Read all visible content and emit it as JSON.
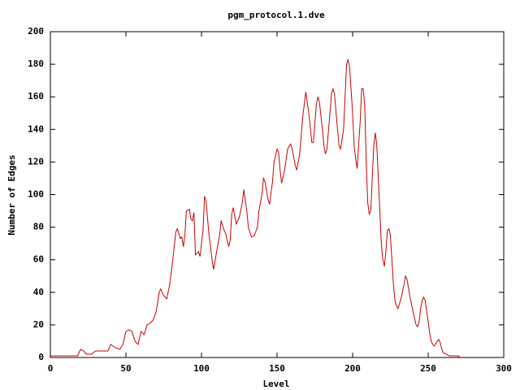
{
  "chart_data": {
    "type": "line",
    "title": "pgm_protocol.1.dve",
    "x_label": "Level",
    "y_label": "Number of Edges",
    "xlim": [
      0,
      300
    ],
    "xticks": [
      0,
      50,
      100,
      150,
      200,
      250,
      300
    ],
    "ylim": [
      0,
      200
    ],
    "yticks": [
      0,
      20,
      40,
      60,
      80,
      100,
      120,
      140,
      160,
      180,
      200
    ],
    "series": [
      {
        "color": "#cc0000",
        "x": [
          0,
          18,
          20,
          22,
          24,
          27,
          30,
          35,
          38,
          40,
          43,
          46,
          48,
          50,
          52,
          54,
          56,
          58,
          60,
          62,
          64,
          66,
          68,
          70,
          72,
          73,
          75,
          77,
          79,
          81,
          83,
          84,
          86,
          87,
          88,
          89,
          90,
          92,
          93,
          94,
          95,
          96,
          98,
          99,
          101,
          102,
          103,
          105,
          107,
          108,
          110,
          112,
          113,
          115,
          116,
          118,
          119,
          120,
          121,
          123,
          125,
          127,
          128,
          130,
          131,
          133,
          135,
          137,
          138,
          140,
          141,
          142,
          144,
          145,
          147,
          148,
          150,
          151,
          152,
          153,
          155,
          157,
          159,
          160,
          162,
          163,
          165,
          167,
          169,
          171,
          173,
          174,
          176,
          177,
          178,
          180,
          181,
          182,
          183,
          185,
          186,
          187,
          188,
          190,
          191,
          192,
          194,
          195,
          196,
          197,
          198,
          200,
          201,
          202,
          203,
          205,
          206,
          207,
          208,
          209,
          210,
          211,
          212,
          213,
          214,
          215,
          216,
          217,
          218,
          219,
          220,
          221,
          222,
          223,
          224,
          225,
          226,
          227,
          228,
          229,
          230,
          232,
          234,
          235,
          236,
          238,
          240,
          241,
          242,
          243,
          244,
          245,
          246,
          247,
          248,
          250,
          251,
          252,
          253,
          254,
          256,
          257,
          258,
          259,
          260,
          262,
          264,
          270,
          271
        ],
        "values": [
          1,
          1,
          5,
          4,
          2,
          2,
          4,
          4,
          4,
          8,
          6,
          5,
          8,
          16,
          17,
          16,
          10,
          8,
          16,
          14,
          20,
          21,
          23,
          28,
          40,
          42,
          38,
          36,
          45,
          60,
          77,
          79,
          73,
          74,
          68,
          75,
          90,
          91,
          85,
          84,
          89,
          63,
          65,
          62,
          78,
          99,
          96,
          75,
          60,
          54,
          65,
          75,
          84,
          78,
          76,
          68,
          72,
          88,
          92,
          82,
          86,
          95,
          103,
          90,
          80,
          74,
          75,
          80,
          90,
          100,
          110,
          108,
          97,
          94,
          108,
          120,
          128,
          126,
          115,
          107,
          115,
          128,
          131,
          128,
          118,
          115,
          125,
          148,
          163,
          150,
          132,
          132,
          155,
          160,
          157,
          140,
          130,
          125,
          128,
          150,
          162,
          165,
          162,
          140,
          130,
          128,
          140,
          160,
          180,
          183,
          178,
          150,
          130,
          122,
          116,
          145,
          165,
          165,
          155,
          120,
          95,
          88,
          90,
          110,
          130,
          138,
          130,
          110,
          90,
          70,
          60,
          56,
          65,
          78,
          79,
          75,
          60,
          45,
          35,
          32,
          30,
          36,
          45,
          50,
          48,
          37,
          28,
          24,
          20,
          19,
          22,
          30,
          35,
          37,
          35,
          22,
          15,
          10,
          8,
          7,
          10,
          11,
          9,
          5,
          3,
          2,
          1,
          1,
          0
        ]
      }
    ]
  }
}
